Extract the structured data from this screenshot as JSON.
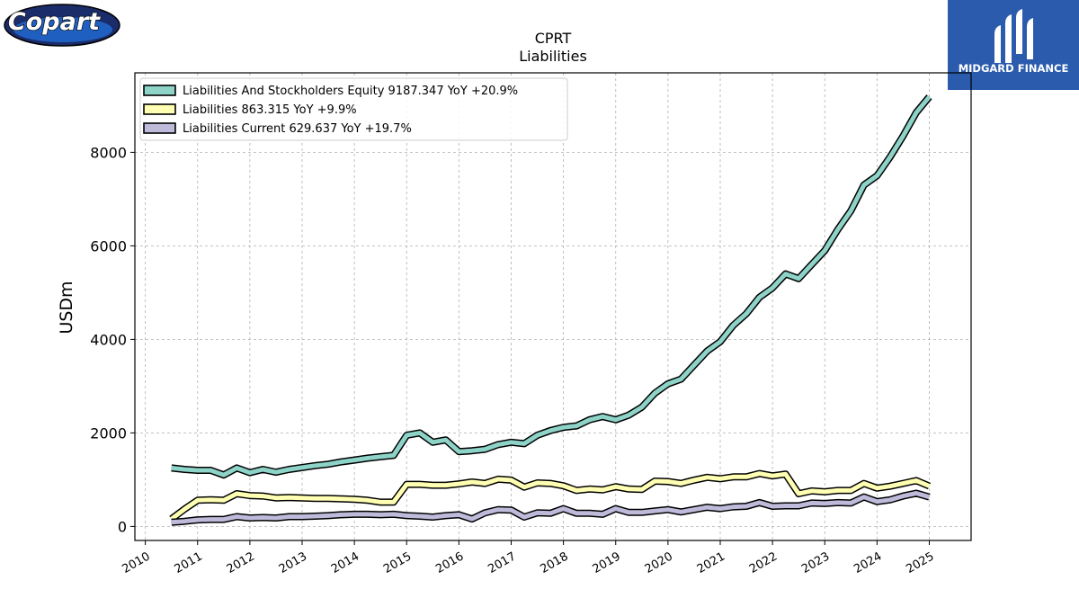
{
  "logos": {
    "copart": {
      "text": "Copart",
      "colors": {
        "navy": "#1b2c6b",
        "blue": "#1f5fbf",
        "outline": "#000000"
      }
    },
    "midgard": {
      "text": "MIDGARD FINANCE",
      "background": "#2b5bad",
      "icon": "midgard-mark-icon"
    }
  },
  "chart_data": {
    "type": "line",
    "title": "CPRT",
    "subtitle": "Liabilities",
    "xlabel": "",
    "ylabel": "USDm",
    "xlim": [
      2009.8,
      2025.8
    ],
    "ylim": [
      -300,
      9700
    ],
    "x_ticks": [
      "2010",
      "2011",
      "2012",
      "2013",
      "2014",
      "2015",
      "2016",
      "2017",
      "2018",
      "2019",
      "2020",
      "2021",
      "2022",
      "2023",
      "2024",
      "2025"
    ],
    "y_ticks": [
      "0",
      "2000",
      "4000",
      "6000",
      "8000"
    ],
    "grid": true,
    "legend_position": "top-left",
    "x": [
      2010.5,
      2010.75,
      2011.0,
      2011.25,
      2011.5,
      2011.75,
      2012.0,
      2012.25,
      2012.5,
      2012.75,
      2013.0,
      2013.25,
      2013.5,
      2013.75,
      2014.0,
      2014.25,
      2014.5,
      2014.75,
      2015.0,
      2015.25,
      2015.5,
      2015.75,
      2016.0,
      2016.25,
      2016.5,
      2016.75,
      2017.0,
      2017.25,
      2017.5,
      2017.75,
      2018.0,
      2018.25,
      2018.5,
      2018.75,
      2019.0,
      2019.25,
      2019.5,
      2019.75,
      2020.0,
      2020.25,
      2020.5,
      2020.75,
      2021.0,
      2021.25,
      2021.5,
      2021.75,
      2022.0,
      2022.25,
      2022.5,
      2022.75,
      2023.0,
      2023.25,
      2023.5,
      2023.75,
      2024.0,
      2024.25,
      2024.5,
      2024.75,
      2025.0
    ],
    "series": [
      {
        "name": "Liabilities And Stockholders Equity",
        "legend": "Liabilities And Stockholders Equity  9187.347 YoY +20.9%",
        "color": "#8dd3c7",
        "values": [
          1250,
          1220,
          1200,
          1200,
          1100,
          1250,
          1150,
          1220,
          1160,
          1220,
          1260,
          1300,
          1330,
          1380,
          1420,
          1460,
          1490,
          1520,
          1950,
          2000,
          1800,
          1850,
          1600,
          1620,
          1650,
          1750,
          1800,
          1770,
          1950,
          2050,
          2120,
          2150,
          2280,
          2350,
          2280,
          2380,
          2550,
          2850,
          3050,
          3150,
          3450,
          3750,
          3950,
          4300,
          4550,
          4900,
          5100,
          5400,
          5300,
          5600,
          5900,
          6350,
          6750,
          7300,
          7500,
          7900,
          8350,
          8850,
          9187
        ]
      },
      {
        "name": "Liabilities",
        "legend": "Liabilities  863.315 YoY +9.9%",
        "color": "#ffffb3",
        "values": [
          160,
          370,
          560,
          570,
          560,
          700,
          660,
          650,
          610,
          620,
          610,
          600,
          600,
          590,
          580,
          560,
          520,
          520,
          900,
          900,
          880,
          880,
          910,
          950,
          920,
          1010,
          990,
          840,
          930,
          920,
          870,
          770,
          800,
          780,
          850,
          800,
          790,
          970,
          960,
          920,
          990,
          1050,
          1020,
          1060,
          1060,
          1130,
          1080,
          1120,
          700,
          760,
          740,
          770,
          770,
          920,
          820,
          860,
          920,
          980,
          863
        ]
      },
      {
        "name": "Liabilities Current",
        "legend": "Liabilities Current  629.637 YoY +19.7%",
        "color": "#bebada",
        "values": [
          90,
          110,
          140,
          150,
          150,
          210,
          180,
          190,
          180,
          210,
          210,
          220,
          230,
          250,
          260,
          260,
          250,
          260,
          230,
          220,
          200,
          230,
          250,
          160,
          290,
          360,
          350,
          200,
          290,
          280,
          380,
          280,
          280,
          260,
          380,
          300,
          300,
          330,
          360,
          310,
          360,
          410,
          380,
          420,
          430,
          510,
          430,
          440,
          440,
          500,
          490,
          510,
          500,
          630,
          530,
          570,
          650,
          710,
          629
        ]
      }
    ]
  }
}
